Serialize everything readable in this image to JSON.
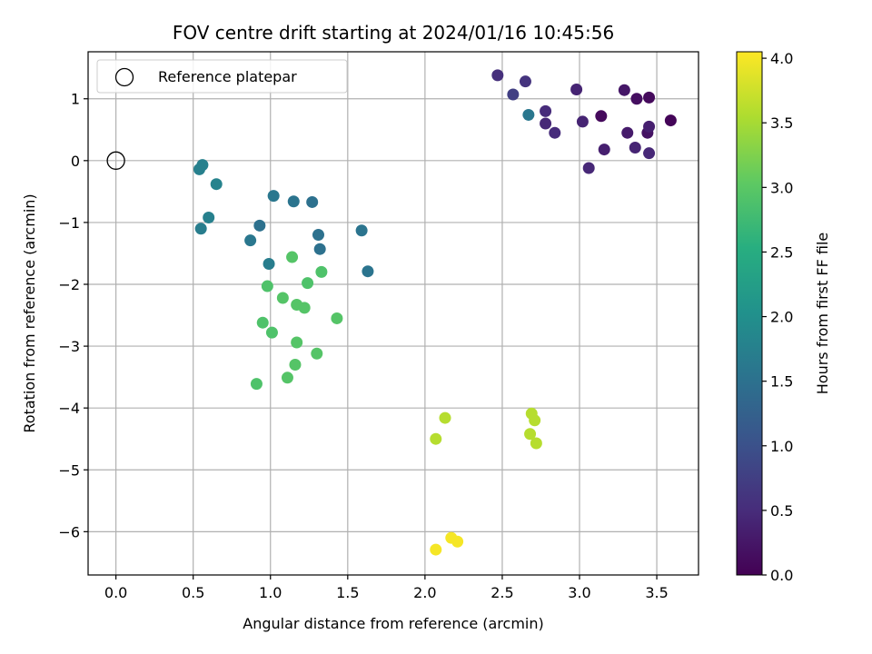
{
  "chart_data": {
    "type": "scatter",
    "title": "FOV centre drift starting at 2024/01/16 10:45:56",
    "xlabel": "Angular distance from reference (arcmin)",
    "ylabel": "Rotation from reference (arcmin)",
    "xlim": [
      -0.18,
      3.77
    ],
    "ylim": [
      -6.7,
      1.76
    ],
    "xticks": [
      0.0,
      0.5,
      1.0,
      1.5,
      2.0,
      2.5,
      3.0,
      3.5
    ],
    "xtick_labels": [
      "0.0",
      "0.5",
      "1.0",
      "1.5",
      "2.0",
      "2.5",
      "3.0",
      "3.5"
    ],
    "yticks": [
      1,
      0,
      -1,
      -2,
      -3,
      -4,
      -5,
      -6
    ],
    "ytick_labels": [
      "1",
      "0",
      "−1",
      "−2",
      "−3",
      "−4",
      "−5",
      "−6"
    ],
    "grid": true,
    "legend": {
      "location": "upper-left",
      "entries": [
        "Reference platepar"
      ]
    },
    "reference_point": {
      "x": 0.0,
      "y": 0.0,
      "label": "Reference platepar"
    },
    "colorbar": {
      "label": "Hours from first FF file",
      "range": [
        0.0,
        4.05
      ],
      "ticks": [
        0.0,
        0.5,
        1.0,
        1.5,
        2.0,
        2.5,
        3.0,
        3.5,
        4.0
      ],
      "tick_labels": [
        "0.0",
        "0.5",
        "1.0",
        "1.5",
        "2.0",
        "2.5",
        "3.0",
        "3.5",
        "4.0"
      ],
      "colormap": "viridis"
    },
    "points": [
      {
        "x": 3.59,
        "y": 0.65,
        "t": 0.05
      },
      {
        "x": 3.45,
        "y": 1.02,
        "t": 0.1
      },
      {
        "x": 3.37,
        "y": 1.0,
        "t": 0.15
      },
      {
        "x": 3.29,
        "y": 1.14,
        "t": 0.25
      },
      {
        "x": 3.14,
        "y": 0.72,
        "t": 0.1
      },
      {
        "x": 3.44,
        "y": 0.45,
        "t": 0.2
      },
      {
        "x": 3.45,
        "y": 0.55,
        "t": 0.35
      },
      {
        "x": 3.31,
        "y": 0.45,
        "t": 0.3
      },
      {
        "x": 3.36,
        "y": 0.21,
        "t": 0.4
      },
      {
        "x": 3.45,
        "y": 0.12,
        "t": 0.45
      },
      {
        "x": 3.16,
        "y": 0.18,
        "t": 0.35
      },
      {
        "x": 3.06,
        "y": -0.12,
        "t": 0.45
      },
      {
        "x": 2.98,
        "y": 1.15,
        "t": 0.4
      },
      {
        "x": 3.02,
        "y": 0.63,
        "t": 0.4
      },
      {
        "x": 2.78,
        "y": 0.6,
        "t": 0.45
      },
      {
        "x": 2.78,
        "y": 0.8,
        "t": 0.5
      },
      {
        "x": 2.84,
        "y": 0.45,
        "t": 0.5
      },
      {
        "x": 2.47,
        "y": 1.38,
        "t": 0.55
      },
      {
        "x": 2.65,
        "y": 1.28,
        "t": 0.6
      },
      {
        "x": 2.57,
        "y": 1.07,
        "t": 0.75
      },
      {
        "x": 2.67,
        "y": 0.74,
        "t": 1.6
      },
      {
        "x": 0.56,
        "y": -0.07,
        "t": 1.75
      },
      {
        "x": 0.54,
        "y": -0.14,
        "t": 1.75
      },
      {
        "x": 0.65,
        "y": -0.38,
        "t": 1.8
      },
      {
        "x": 1.02,
        "y": -0.57,
        "t": 1.6
      },
      {
        "x": 1.15,
        "y": -0.66,
        "t": 1.55
      },
      {
        "x": 1.27,
        "y": -0.67,
        "t": 1.5
      },
      {
        "x": 0.6,
        "y": -0.92,
        "t": 1.75
      },
      {
        "x": 0.55,
        "y": -1.1,
        "t": 1.7
      },
      {
        "x": 0.93,
        "y": -1.05,
        "t": 1.5
      },
      {
        "x": 0.87,
        "y": -1.29,
        "t": 1.6
      },
      {
        "x": 1.31,
        "y": -1.2,
        "t": 1.5
      },
      {
        "x": 1.32,
        "y": -1.43,
        "t": 1.5
      },
      {
        "x": 1.59,
        "y": -1.13,
        "t": 1.55
      },
      {
        "x": 1.63,
        "y": -1.79,
        "t": 1.55
      },
      {
        "x": 0.99,
        "y": -1.67,
        "t": 1.7
      },
      {
        "x": 1.14,
        "y": -1.56,
        "t": 2.95
      },
      {
        "x": 1.33,
        "y": -1.8,
        "t": 2.9
      },
      {
        "x": 0.98,
        "y": -2.03,
        "t": 2.9
      },
      {
        "x": 1.24,
        "y": -1.98,
        "t": 2.9
      },
      {
        "x": 1.08,
        "y": -2.22,
        "t": 2.95
      },
      {
        "x": 1.17,
        "y": -2.33,
        "t": 2.95
      },
      {
        "x": 1.22,
        "y": -2.38,
        "t": 2.95
      },
      {
        "x": 1.43,
        "y": -2.55,
        "t": 2.95
      },
      {
        "x": 0.95,
        "y": -2.62,
        "t": 2.9
      },
      {
        "x": 1.01,
        "y": -2.78,
        "t": 2.9
      },
      {
        "x": 1.17,
        "y": -2.94,
        "t": 2.95
      },
      {
        "x": 1.3,
        "y": -3.12,
        "t": 2.95
      },
      {
        "x": 1.16,
        "y": -3.3,
        "t": 2.95
      },
      {
        "x": 1.11,
        "y": -3.51,
        "t": 2.95
      },
      {
        "x": 0.91,
        "y": -3.61,
        "t": 2.9
      },
      {
        "x": 2.13,
        "y": -4.16,
        "t": 3.6
      },
      {
        "x": 2.07,
        "y": -4.5,
        "t": 3.6
      },
      {
        "x": 2.69,
        "y": -4.09,
        "t": 3.6
      },
      {
        "x": 2.71,
        "y": -4.2,
        "t": 3.6
      },
      {
        "x": 2.68,
        "y": -4.42,
        "t": 3.6
      },
      {
        "x": 2.72,
        "y": -4.57,
        "t": 3.6
      },
      {
        "x": 2.17,
        "y": -6.1,
        "t": 4.0
      },
      {
        "x": 2.21,
        "y": -6.16,
        "t": 4.0
      },
      {
        "x": 2.07,
        "y": -6.29,
        "t": 4.0
      }
    ]
  }
}
